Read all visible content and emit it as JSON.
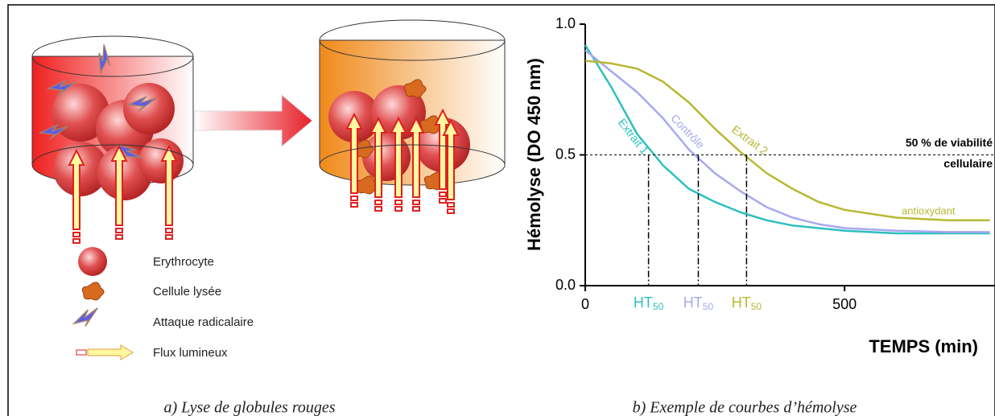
{
  "diagram": {
    "legend": [
      "Erythrocyte",
      "Cellule lysée",
      "Attaque radicalaire",
      "Flux lumineux"
    ],
    "caption": "a) Lyse de globules rouges"
  },
  "chart_data": {
    "type": "line",
    "caption": "b) Exemple de courbes d’hémolyse",
    "y_label": "Hémolyse (DO 450 nm)",
    "x_label": "TEMPS (min)",
    "x": [
      0,
      50,
      100,
      150,
      200,
      250,
      300,
      350,
      400,
      450,
      500,
      600,
      700,
      780
    ],
    "series": [
      {
        "name": "Extrait 1",
        "color": "#2ebfc0",
        "values": [
          0.92,
          0.76,
          0.58,
          0.46,
          0.37,
          0.32,
          0.28,
          0.25,
          0.23,
          0.22,
          0.21,
          0.2,
          0.2,
          0.2
        ]
      },
      {
        "name": "Contrôle",
        "color": "#a8a8f0",
        "values": [
          0.9,
          0.82,
          0.74,
          0.64,
          0.52,
          0.43,
          0.36,
          0.3,
          0.26,
          0.235,
          0.22,
          0.21,
          0.205,
          0.205
        ]
      },
      {
        "name": "Extrait 2",
        "color": "#b8b832",
        "values": [
          0.86,
          0.85,
          0.83,
          0.78,
          0.7,
          0.6,
          0.51,
          0.43,
          0.37,
          0.32,
          0.29,
          0.26,
          0.25,
          0.25
        ]
      }
    ],
    "annotation": "antioxydant",
    "threshold": {
      "value": 0.5,
      "label": [
        "50 % de viabilité",
        "cellulaire"
      ]
    },
    "ht50": [
      {
        "x": 122,
        "label": "HT",
        "subscript": "50",
        "color": "#2ebfc0"
      },
      {
        "x": 218,
        "label": "HT",
        "subscript": "50",
        "color": "#a8a8f0"
      },
      {
        "x": 311,
        "label": "HT",
        "subscript": "50",
        "color": "#b8b832"
      }
    ],
    "xlim": [
      0,
      790
    ],
    "ylim": [
      0,
      1
    ],
    "xticks": [
      0,
      500
    ],
    "yticks": [
      {
        "value": 0,
        "label": "0.0"
      },
      {
        "value": 0.5,
        "label": "0.5"
      },
      {
        "value": 1,
        "label": "1.0"
      }
    ]
  }
}
